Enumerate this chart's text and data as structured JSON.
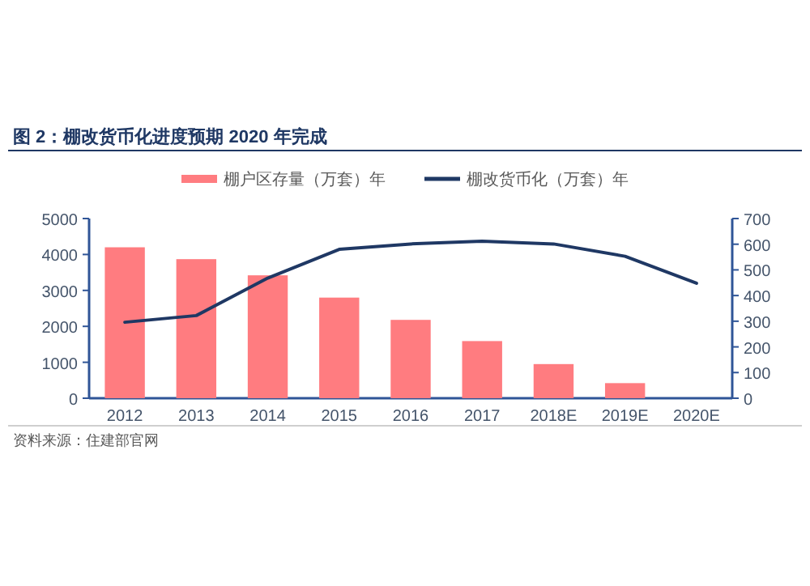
{
  "chart_data": {
    "type": "bar",
    "title": "图 2：棚改货币化进度预期 2020 年完成",
    "categories": [
      "2012",
      "2013",
      "2014",
      "2015",
      "2016",
      "2017",
      "2018E",
      "2019E",
      "2020E"
    ],
    "series": [
      {
        "name": "棚户区存量（万套）年",
        "color": "#ff7c80",
        "values": [
          4200,
          3870,
          3420,
          2800,
          2180,
          1590,
          950,
          420,
          0
        ]
      },
      {
        "name": "棚改货币化（万套）年",
        "type": "line",
        "axis": "y2",
        "color": "#1f3864",
        "values": [
          296,
          322,
          468,
          580,
          601,
          612,
          601,
          553,
          448
        ]
      }
    ],
    "ylim": [
      0,
      5000
    ],
    "yticks": [
      0,
      1000,
      2000,
      3000,
      4000,
      5000
    ],
    "y2lim": [
      0,
      700
    ],
    "y2ticks": [
      0,
      100,
      200,
      300,
      400,
      500,
      600,
      700
    ],
    "grid": false,
    "legend": "top",
    "annotations": [
      "资料来源：住建部官网"
    ]
  }
}
